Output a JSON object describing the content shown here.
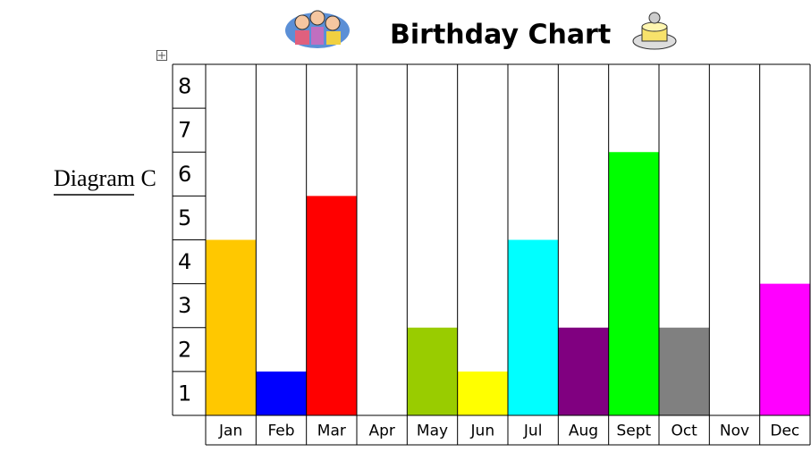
{
  "label": "Diagram C",
  "chart_data": {
    "type": "bar",
    "title": "Birthday Chart",
    "categories": [
      "Jan",
      "Feb",
      "Mar",
      "Apr",
      "May",
      "Jun",
      "Jul",
      "Aug",
      "Sept",
      "Oct",
      "Nov",
      "Dec"
    ],
    "values": [
      4,
      1,
      5,
      0,
      2,
      1,
      4,
      2,
      6,
      2,
      0,
      3
    ],
    "colors": [
      "#ffc800",
      "#0000ff",
      "#ff0000",
      null,
      "#99cc00",
      "#ffff00",
      "#00ffff",
      "#800080",
      "#00ff00",
      "#808080",
      null,
      "#ff00ff"
    ],
    "ylim": [
      0,
      8
    ],
    "yticks": [
      1,
      2,
      3,
      4,
      5,
      6,
      7,
      8
    ],
    "grid": true
  }
}
